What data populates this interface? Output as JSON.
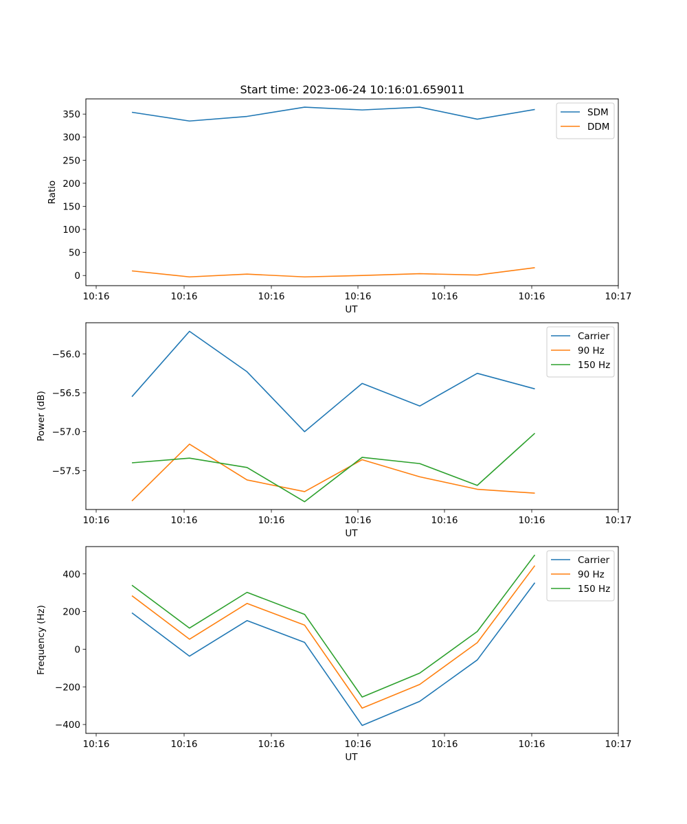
{
  "figure": {
    "title": "Start time: 2023-06-24 10:16:01.659011"
  },
  "chart_data": [
    {
      "type": "line",
      "title": "Start time: 2023-06-24 10:16:01.659011",
      "xlabel": "UT",
      "ylabel": "Ratio",
      "x_tick_labels": [
        "10:16",
        "10:16",
        "10:16",
        "10:16",
        "10:16",
        "10:16",
        "10:16"
      ],
      "x_tick_label_last": "10:17",
      "y_ticks": [
        0,
        50,
        100,
        150,
        200,
        250,
        300,
        350
      ],
      "ylim": [
        -22,
        383
      ],
      "grid": false,
      "legend_position": "upper right",
      "x": [
        1,
        2,
        3,
        4,
        5,
        6,
        7,
        8
      ],
      "xlim": [
        0.2,
        9.45
      ],
      "series": [
        {
          "name": "SDM",
          "color": "#1f77b4",
          "values": [
            354,
            335,
            345,
            365,
            359,
            365,
            339,
            360
          ]
        },
        {
          "name": "DDM",
          "color": "#ff7f0e",
          "values": [
            10,
            -3,
            3,
            -3,
            0,
            4,
            1,
            17
          ]
        }
      ]
    },
    {
      "type": "line",
      "title": "",
      "xlabel": "UT",
      "ylabel": "Power (dB)",
      "x_tick_labels": [
        "10:16",
        "10:16",
        "10:16",
        "10:16",
        "10:16",
        "10:16",
        "10:16"
      ],
      "x_tick_label_last": "10:17",
      "y_ticks": [
        -57.5,
        -57.0,
        -56.5,
        -56.0
      ],
      "y_tick_labels": [
        "−57.5",
        "−57.0",
        "−56.5",
        "−56.0"
      ],
      "ylim": [
        -58.0,
        -55.6
      ],
      "grid": false,
      "legend_position": "upper right",
      "x": [
        1,
        2,
        3,
        4,
        5,
        6,
        7,
        8
      ],
      "xlim": [
        0.2,
        9.45
      ],
      "series": [
        {
          "name": "Carrier",
          "color": "#1f77b4",
          "values": [
            -56.55,
            -55.71,
            -56.23,
            -57.0,
            -56.38,
            -56.67,
            -56.25,
            -56.45
          ]
        },
        {
          "name": "90 Hz",
          "color": "#ff7f0e",
          "values": [
            -57.89,
            -57.16,
            -57.62,
            -57.77,
            -57.36,
            -57.58,
            -57.74,
            -57.79
          ]
        },
        {
          "name": "150 Hz",
          "color": "#2ca02c",
          "values": [
            -57.4,
            -57.34,
            -57.46,
            -57.9,
            -57.33,
            -57.41,
            -57.69,
            -57.02
          ]
        }
      ]
    },
    {
      "type": "line",
      "title": "",
      "xlabel": "UT",
      "ylabel": "Frequency (Hz)",
      "x_tick_labels": [
        "10:16",
        "10:16",
        "10:16",
        "10:16",
        "10:16",
        "10:16",
        "10:16"
      ],
      "x_tick_label_last": "10:17",
      "y_ticks": [
        -400,
        -200,
        0,
        200,
        400
      ],
      "y_tick_labels": [
        "−400",
        "−200",
        "0",
        "200",
        "400"
      ],
      "ylim": [
        -447,
        545
      ],
      "grid": false,
      "legend_position": "upper right",
      "x": [
        1,
        2,
        3,
        4,
        5,
        6,
        7,
        8
      ],
      "xlim": [
        0.2,
        9.45
      ],
      "series": [
        {
          "name": "Carrier",
          "color": "#1f77b4",
          "values": [
            193,
            -37,
            152,
            36,
            -405,
            -277,
            -57,
            353
          ]
        },
        {
          "name": "90 Hz",
          "color": "#ff7f0e",
          "values": [
            284,
            53,
            243,
            128,
            -313,
            -187,
            35,
            444
          ]
        },
        {
          "name": "150 Hz",
          "color": "#2ca02c",
          "values": [
            340,
            112,
            302,
            185,
            -254,
            -127,
            94,
            501
          ]
        }
      ]
    }
  ]
}
